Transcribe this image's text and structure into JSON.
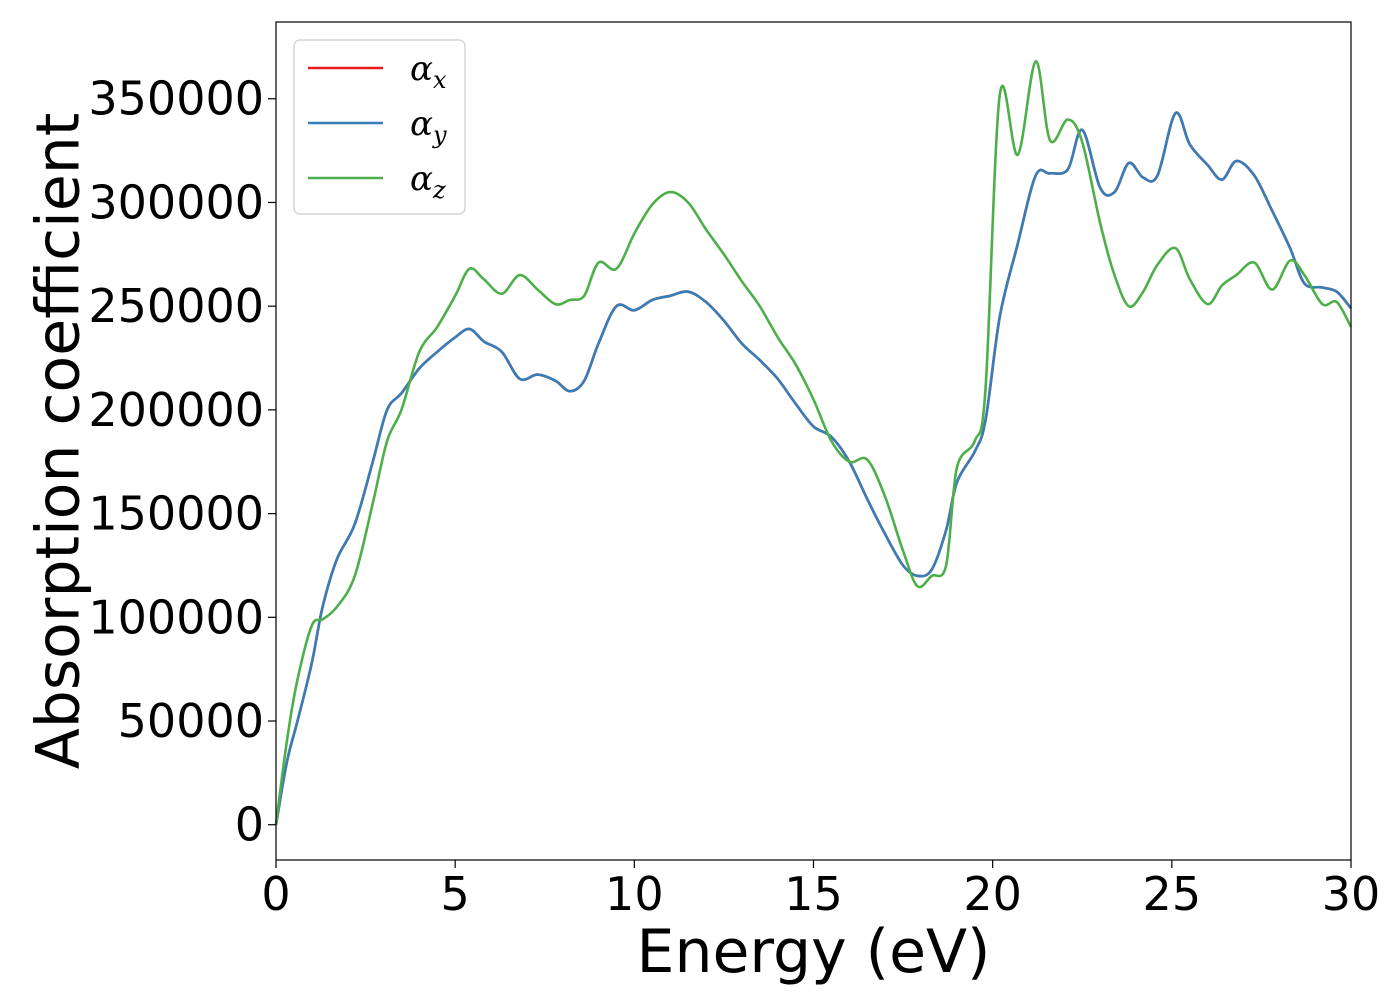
{
  "chart_data": {
    "type": "line",
    "title": "",
    "xlabel": "Energy (eV)",
    "ylabel": "Absorption coefficient",
    "xlim": [
      0,
      30
    ],
    "ylim": [
      -17000,
      387000
    ],
    "x_ticks": [
      0,
      5,
      10,
      15,
      20,
      25,
      30
    ],
    "x_tick_labels": [
      "0",
      "5",
      "10",
      "15",
      "20",
      "25",
      "30"
    ],
    "y_ticks": [
      0,
      50000,
      100000,
      150000,
      200000,
      250000,
      300000,
      350000
    ],
    "y_tick_labels": [
      "0",
      "50000",
      "100000",
      "150000",
      "200000",
      "250000",
      "300000",
      "350000"
    ],
    "grid": false,
    "legend_position": "top-left",
    "x": [
      0,
      0.3,
      0.6,
      1.0,
      1.3,
      1.7,
      2.2,
      2.7,
      3.1,
      3.5,
      4.0,
      4.5,
      5.0,
      5.4,
      5.8,
      6.3,
      6.8,
      7.3,
      7.8,
      8.2,
      8.6,
      9.0,
      9.5,
      10.0,
      10.5,
      11.0,
      11.5,
      12.0,
      12.5,
      13.0,
      13.5,
      14.0,
      14.5,
      15.0,
      15.5,
      16.0,
      16.5,
      17.0,
      17.5,
      17.9,
      18.3,
      18.7,
      19.0,
      19.5,
      19.8,
      20.2,
      20.7,
      21.2,
      21.6,
      22.1,
      22.5,
      23.0,
      23.4,
      23.8,
      24.2,
      24.6,
      25.1,
      25.5,
      26.0,
      26.4,
      26.8,
      27.3,
      27.8,
      28.3,
      28.7,
      29.2,
      29.6,
      30.0
    ],
    "series": [
      {
        "name": "x",
        "color": "#e41a1c",
        "values": [
          0,
          30000,
          50000,
          78000,
          105000,
          128000,
          145000,
          175000,
          200000,
          208000,
          220000,
          228000,
          235000,
          239000,
          233000,
          228000,
          215000,
          217000,
          214000,
          209000,
          214000,
          232000,
          250000,
          248000,
          253000,
          255000,
          257000,
          252000,
          243000,
          232000,
          224000,
          215000,
          203000,
          192000,
          187000,
          175000,
          157000,
          140000,
          125000,
          120000,
          123000,
          142000,
          165000,
          180000,
          195000,
          245000,
          280000,
          313000,
          314000,
          316000,
          335000,
          307000,
          305000,
          319000,
          312000,
          313000,
          343000,
          328000,
          318000,
          311000,
          320000,
          313000,
          296000,
          278000,
          261000,
          259000,
          257000,
          249000
        ]
      },
      {
        "name": "y",
        "color": "#377eb8",
        "values": [
          0,
          30000,
          50000,
          78000,
          105000,
          128000,
          145000,
          175000,
          200000,
          208000,
          220000,
          228000,
          235000,
          239000,
          233000,
          228000,
          215000,
          217000,
          214000,
          209000,
          214000,
          232000,
          250000,
          248000,
          253000,
          255000,
          257000,
          252000,
          243000,
          232000,
          224000,
          215000,
          203000,
          192000,
          187000,
          175000,
          157000,
          140000,
          125000,
          120000,
          123000,
          142000,
          165000,
          180000,
          195000,
          245000,
          280000,
          313000,
          314000,
          316000,
          335000,
          307000,
          305000,
          319000,
          312000,
          313000,
          343000,
          328000,
          318000,
          311000,
          320000,
          313000,
          296000,
          278000,
          261000,
          259000,
          257000,
          249000
        ]
      },
      {
        "name": "z",
        "color": "#4daf4a",
        "values": [
          0,
          40000,
          70000,
          96000,
          99000,
          105000,
          120000,
          155000,
          185000,
          200000,
          228000,
          240000,
          255000,
          268000,
          263000,
          256000,
          265000,
          258000,
          251000,
          253000,
          255000,
          271000,
          268000,
          285000,
          299000,
          305000,
          300000,
          287000,
          275000,
          262000,
          250000,
          235000,
          222000,
          205000,
          185000,
          175000,
          176000,
          158000,
          132000,
          115000,
          120000,
          125000,
          172000,
          185000,
          210000,
          352000,
          323000,
          368000,
          330000,
          340000,
          329000,
          290000,
          265000,
          250000,
          257000,
          270000,
          278000,
          263000,
          251000,
          260000,
          265000,
          271000,
          258000,
          272000,
          265000,
          251000,
          252000,
          240000
        ]
      }
    ]
  }
}
